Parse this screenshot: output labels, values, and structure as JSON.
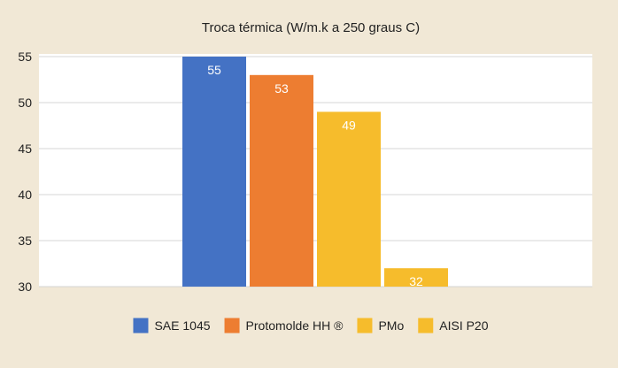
{
  "chart_data": {
    "type": "bar",
    "title": "Troca térmica (W/m.k a 250 graus C)",
    "xlabel": "",
    "ylabel": "",
    "ylim": [
      30,
      55
    ],
    "yticks": [
      30,
      35,
      40,
      45,
      50,
      55
    ],
    "grid": true,
    "legend_position": "bottom",
    "series": [
      {
        "name": "SAE 1045",
        "value": 55,
        "label": "55",
        "color": "#4472c4"
      },
      {
        "name": "Protomolde HH ®",
        "value": 53,
        "label": "53",
        "color": "#ed7d31"
      },
      {
        "name": "PMo",
        "value": 49,
        "label": "49",
        "color": "#f6bc2c"
      },
      {
        "name": "AISI P20",
        "value": 32,
        "label": "32",
        "color": "#f6bc2c"
      }
    ]
  }
}
